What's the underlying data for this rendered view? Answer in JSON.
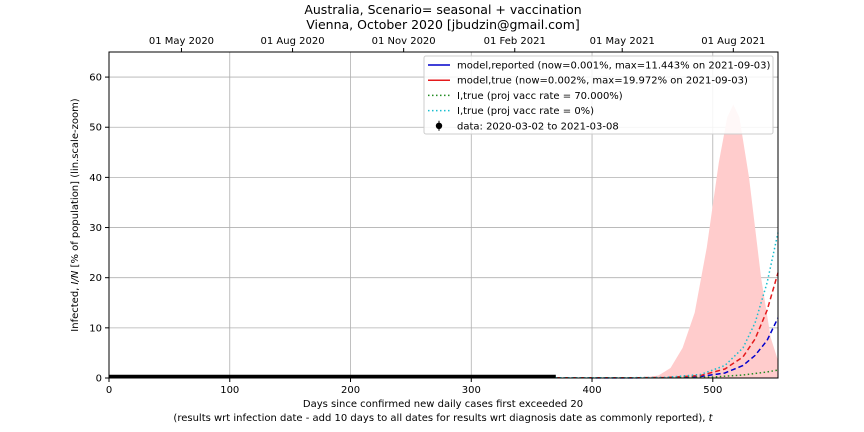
{
  "chart_data": {
    "type": "line",
    "title_line1": "Australia, Scenario= seasonal + vaccination",
    "title_line2": "Vienna, October 2020 [jbudzin@gmail.com]",
    "xlabel_line1": "Days since confirmed new daily cases first exceeded 20",
    "xlabel_line2": "(results wrt infection date - add 10 days to all dates for results wrt diagnosis date as commonly reported), ",
    "xlabel_symbol": "t",
    "ylabel_prefix": "Infected, ",
    "ylabel_symbol": "I/N",
    "ylabel_suffix": " [% of population] (lin.scale-zoom)",
    "xlim": [
      0,
      554
    ],
    "ylim": [
      0,
      65
    ],
    "x_ticks": [
      0,
      100,
      200,
      300,
      400,
      500
    ],
    "x_tick_labels": [
      "0",
      "100",
      "200",
      "300",
      "400",
      "500"
    ],
    "y_ticks": [
      0,
      10,
      20,
      30,
      40,
      50,
      60
    ],
    "y_tick_labels": [
      "0",
      "10",
      "20",
      "30",
      "40",
      "50",
      "60"
    ],
    "top_ticks": [
      60,
      152,
      244,
      336,
      425,
      517
    ],
    "top_tick_labels": [
      "01 May 2020",
      "01 Aug 2020",
      "01 Nov 2020",
      "01 Feb 2021",
      "01 May 2021",
      "01 Aug 2021"
    ],
    "grid": true,
    "legend_position": "upper-right",
    "legend": [
      {
        "label": "model,reported (now=0.001%, max=11.443% on 2021-09-03)",
        "color": "#0000cc",
        "style": "solid"
      },
      {
        "label": "model,true (now=0.002%, max=19.972% on 2021-09-03)",
        "color": "#e41a1c",
        "style": "solid"
      },
      {
        "label": "I,true (proj vacc rate = 70.000%)",
        "color": "#228b22",
        "style": "dotted"
      },
      {
        "label": "I,true (proj vacc rate = 0%)",
        "color": "#17becf",
        "style": "dotted"
      },
      {
        "label": "data: 2020-03-02 to 2021-03-08",
        "color": "#000000",
        "style": "marker"
      }
    ],
    "series": [
      {
        "name": "data: 2020-03-02 to 2021-03-08",
        "color": "#000000",
        "x": [
          0,
          370
        ],
        "y": [
          0.3,
          0.3
        ]
      },
      {
        "name": "model,reported (now=0.001%, max=11.443% on 2021-09-03)",
        "color": "#0000cc",
        "x": [
          370,
          420,
          460,
          490,
          510,
          525,
          535,
          545,
          554
        ],
        "y": [
          0.05,
          0.02,
          0.05,
          0.3,
          1.0,
          2.5,
          4.5,
          7.5,
          12
        ]
      },
      {
        "name": "model,true (now=0.002%, max=19.972% on 2021-09-03)",
        "color": "#e41a1c",
        "x": [
          370,
          420,
          460,
          490,
          510,
          525,
          535,
          545,
          554
        ],
        "y": [
          0.05,
          0.03,
          0.08,
          0.5,
          1.8,
          4.2,
          7.8,
          13.5,
          21
        ]
      },
      {
        "name": "I,true (proj vacc rate = 70.000%)",
        "color": "#228b22",
        "x": [
          370,
          460,
          500,
          525,
          545,
          554
        ],
        "y": [
          0.05,
          0.05,
          0.2,
          0.6,
          1.2,
          1.6
        ]
      },
      {
        "name": "I,true (proj vacc rate = 0%)",
        "color": "#17becf",
        "x": [
          370,
          420,
          460,
          490,
          510,
          525,
          535,
          545,
          554
        ],
        "y": [
          0.05,
          0.03,
          0.1,
          0.7,
          2.5,
          6,
          11,
          19,
          29
        ]
      }
    ],
    "band": {
      "color": "#ffcccc",
      "x": [
        440,
        455,
        465,
        475,
        485,
        495,
        505,
        512,
        517,
        522,
        530,
        540,
        548,
        554
      ],
      "y": [
        0,
        0.5,
        2,
        6,
        13,
        26,
        43,
        52,
        54.5,
        52,
        40,
        20,
        8,
        3.5
      ]
    }
  }
}
